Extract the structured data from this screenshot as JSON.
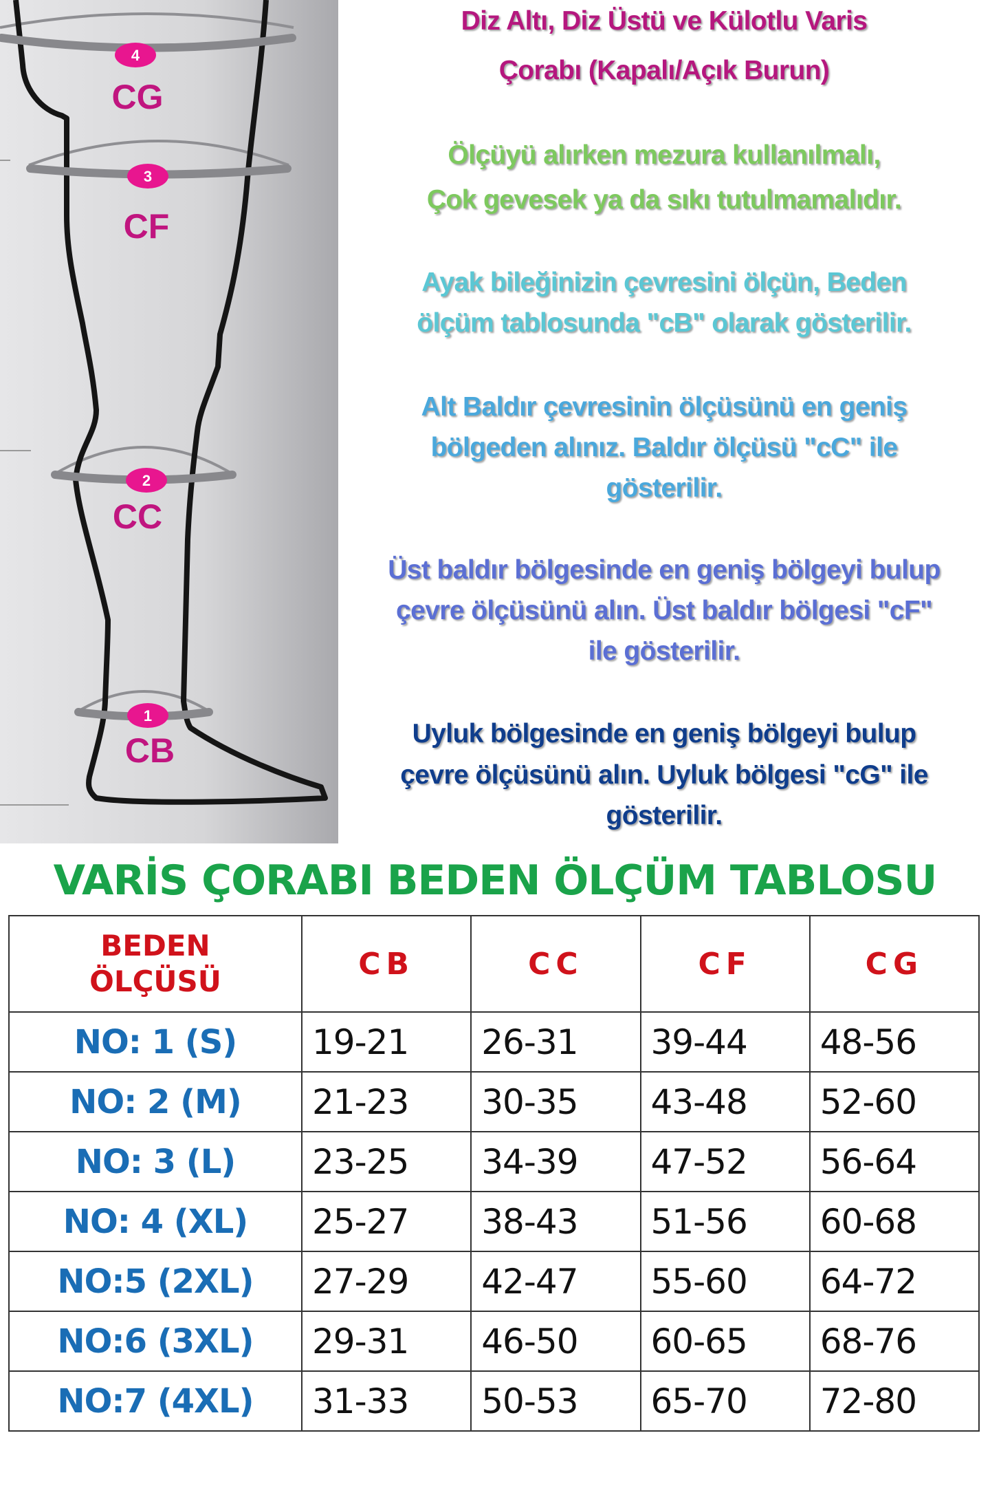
{
  "diagram": {
    "markers": [
      {
        "number": "4",
        "label": "CG"
      },
      {
        "number": "3",
        "label": "CF"
      },
      {
        "number": "2",
        "label": "CC"
      },
      {
        "number": "1",
        "label": "CB"
      }
    ]
  },
  "info": {
    "title": [
      "Diz Altı, Diz Üstü ve Külotlu Varis",
      "Çorabı (Kapalı/Açık Burun)"
    ],
    "paragraphs": [
      {
        "lines": [
          "Ölçüyü alırken mezura kullanılmalı,",
          "Çok gevesek ya da sıkı tutulmamalıdır."
        ]
      },
      {
        "lines": [
          "Ayak bileğinizin çevresini ölçün, Beden",
          "ölçüm tablosunda \"cB\" olarak gösterilir."
        ]
      },
      {
        "lines": [
          "Alt Baldır çevresinin ölçüsünü en geniş",
          "bölgeden alınız. Baldır ölçüsü \"cC\" ile",
          "gösterilir."
        ]
      },
      {
        "lines": [
          "Üst baldır bölgesinde en geniş bölgeyi bulup",
          "çevre ölçüsünü alın. Üst baldır bölgesi \"cF\"",
          "ile gösterilir."
        ]
      },
      {
        "lines": [
          "Uyluk bölgesinde en geniş bölgeyi bulup",
          "çevre ölçüsünü alın. Uyluk bölgesi \"cG\" ile",
          "gösterilir."
        ]
      }
    ],
    "colors": {
      "title": "#b5177e",
      "p0": "#7dc95e",
      "p1": "#5bc7d4",
      "p2": "#4aa8dc",
      "p3": "#5b6fd4",
      "p4": "#0f3d8c"
    }
  },
  "table": {
    "title": "VARİS ÇORABI BEDEN ÖLÇÜM TABLOSU",
    "header": {
      "size_label": [
        "BEDEN",
        "ÖLÇÜSÜ"
      ],
      "columns": [
        "CB",
        "CC",
        "CF",
        "CG"
      ]
    },
    "rows": [
      {
        "size": "NO: 1 (S)",
        "values": [
          "19-21",
          "26-31",
          "39-44",
          "48-56"
        ]
      },
      {
        "size": "NO: 2 (M)",
        "values": [
          "21-23",
          "30-35",
          "43-48",
          "52-60"
        ]
      },
      {
        "size": "NO: 3 (L)",
        "values": [
          "23-25",
          "34-39",
          "47-52",
          "56-64"
        ]
      },
      {
        "size": "NO: 4 (XL)",
        "values": [
          "25-27",
          "38-43",
          "51-56",
          "60-68"
        ]
      },
      {
        "size": "NO:5 (2XL)",
        "values": [
          "27-29",
          "42-47",
          "55-60",
          "64-72"
        ]
      },
      {
        "size": "NO:6 (3XL)",
        "values": [
          "29-31",
          "46-50",
          "60-65",
          "68-76"
        ]
      },
      {
        "size": "NO:7 (4XL)",
        "values": [
          "31-33",
          "50-53",
          "65-70",
          "72-80"
        ]
      }
    ]
  }
}
